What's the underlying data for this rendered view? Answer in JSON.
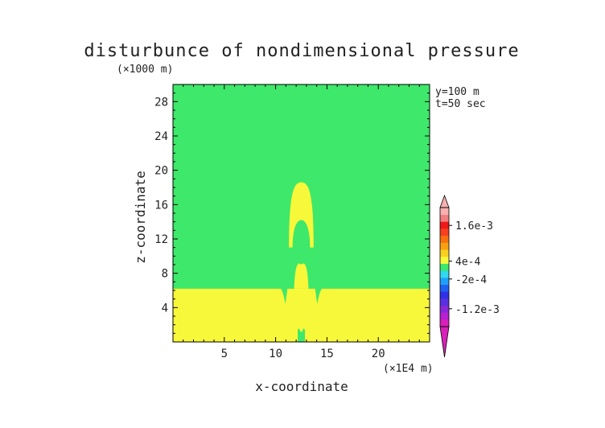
{
  "chart_data": {
    "type": "heatmap",
    "title": "disturbunce of nondimensional pressure",
    "xlabel": "x-coordinate",
    "ylabel": "z-coordinate",
    "x_unit": "(×1E4 m)",
    "y_unit": "(×1000 m)",
    "xlim": [
      0,
      25
    ],
    "ylim": [
      0,
      30
    ],
    "xticks": [
      "5",
      "10",
      "15",
      "20"
    ],
    "yticks": [
      "4",
      "8",
      "12",
      "16",
      "20",
      "24",
      "28"
    ],
    "annotations": [
      "y=100 m",
      "t=50 sec"
    ],
    "background_color": "#3ee86a",
    "regions": [
      {
        "name": "lower-layer",
        "color": "#f8f83a",
        "x": [
          0,
          25
        ],
        "z": [
          0,
          6.2
        ]
      },
      {
        "name": "lower-dome",
        "color": "#f8f83a",
        "center_x": 12.5,
        "peak_z": 9.0,
        "halfwidth_x": 1.8
      },
      {
        "name": "upper-arc",
        "color": "#f8f83a",
        "center_x": 12.5,
        "inner_peak_z": 14.2,
        "outer_peak_z": 18.6,
        "base_z": 11.0,
        "halfwidth_x": 1.2
      }
    ],
    "colorbar": {
      "labels": [
        "1.6e-3",
        "4e-4",
        "-2e-4",
        "-1.2e-3"
      ],
      "label_values": [
        0.0016,
        0.0004,
        -0.0002,
        -0.0012
      ],
      "vmin": -0.0018,
      "vmax": 0.0022,
      "colors": [
        "#d820b8",
        "#b820d0",
        "#8a28d8",
        "#5a30e0",
        "#3030e8",
        "#2060f0",
        "#20a0f8",
        "#30d8f0",
        "#3ee86a",
        "#f8f83a",
        "#f8d020",
        "#f8a010",
        "#f87010",
        "#f84020",
        "#f01818",
        "#f08080",
        "#f8b0b0"
      ]
    }
  }
}
